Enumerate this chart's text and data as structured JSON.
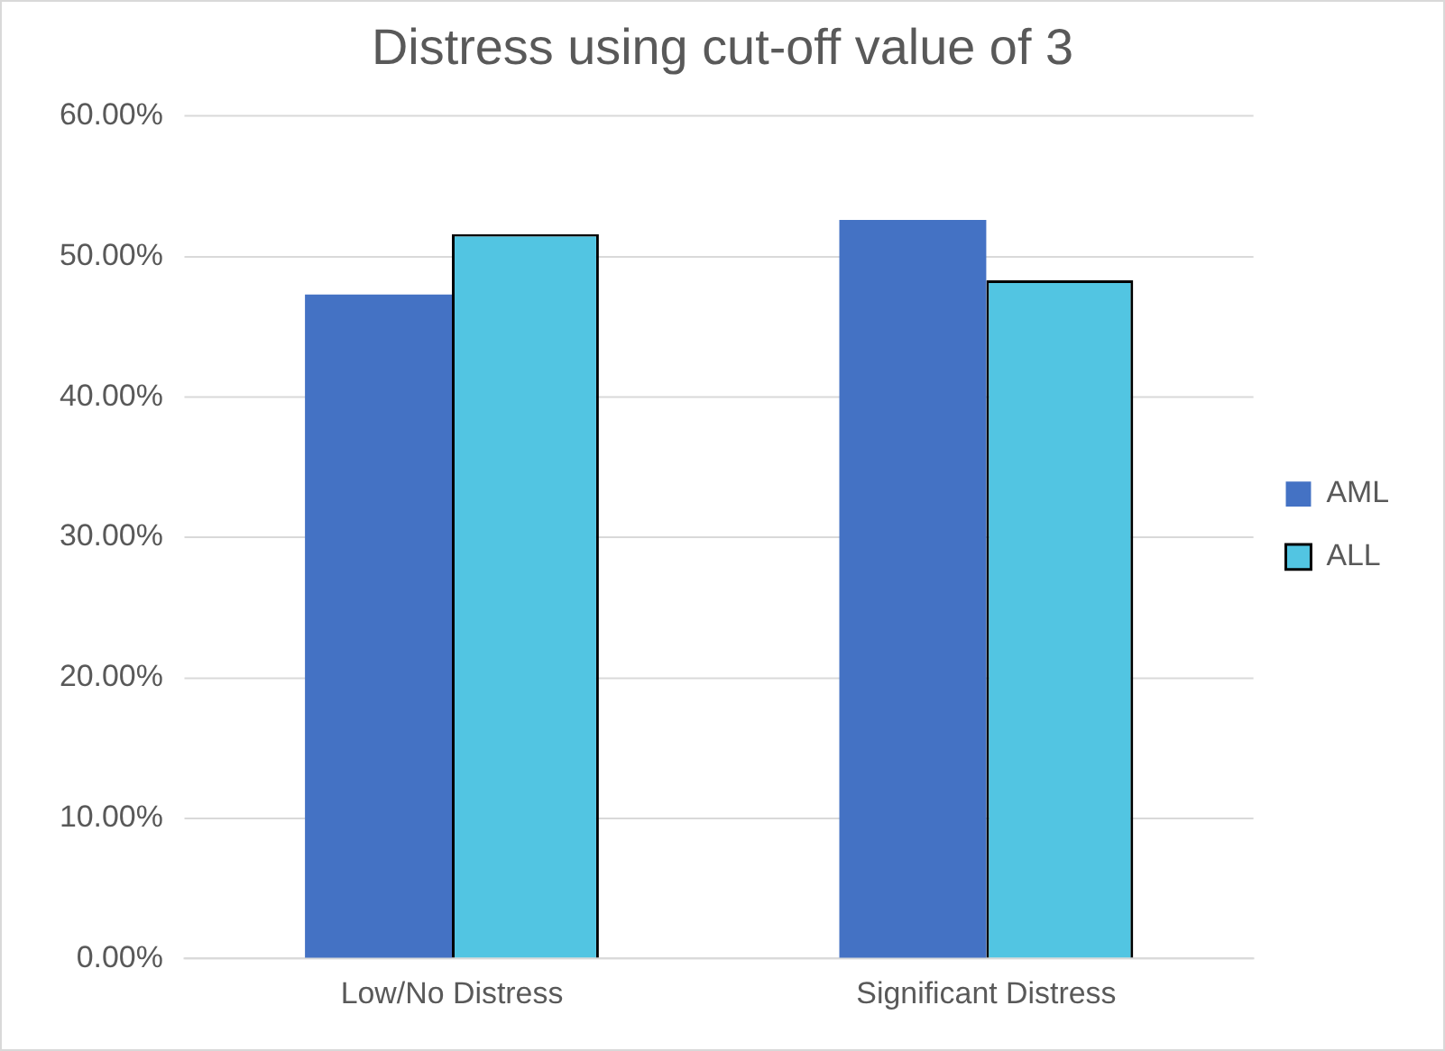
{
  "chart_data": {
    "type": "bar",
    "title": "Distress using cut-off value of 3",
    "categories": [
      "Low/No Distress",
      "Significant Distress"
    ],
    "series": [
      {
        "name": "AML",
        "color": "#4472c4",
        "values": [
          47.3,
          52.6
        ]
      },
      {
        "name": "ALL",
        "color": "#52c5e2",
        "values": [
          51.6,
          48.3
        ]
      }
    ],
    "ylim": [
      0,
      60
    ],
    "yticks": [
      {
        "value": 0,
        "label": "0.00%"
      },
      {
        "value": 10,
        "label": "10.00%"
      },
      {
        "value": 20,
        "label": "20.00%"
      },
      {
        "value": 30,
        "label": "30.00%"
      },
      {
        "value": 40,
        "label": "40.00%"
      },
      {
        "value": 50,
        "label": "50.00%"
      },
      {
        "value": 60,
        "label": "60.00%"
      }
    ],
    "grid": "y",
    "legend": "right"
  }
}
